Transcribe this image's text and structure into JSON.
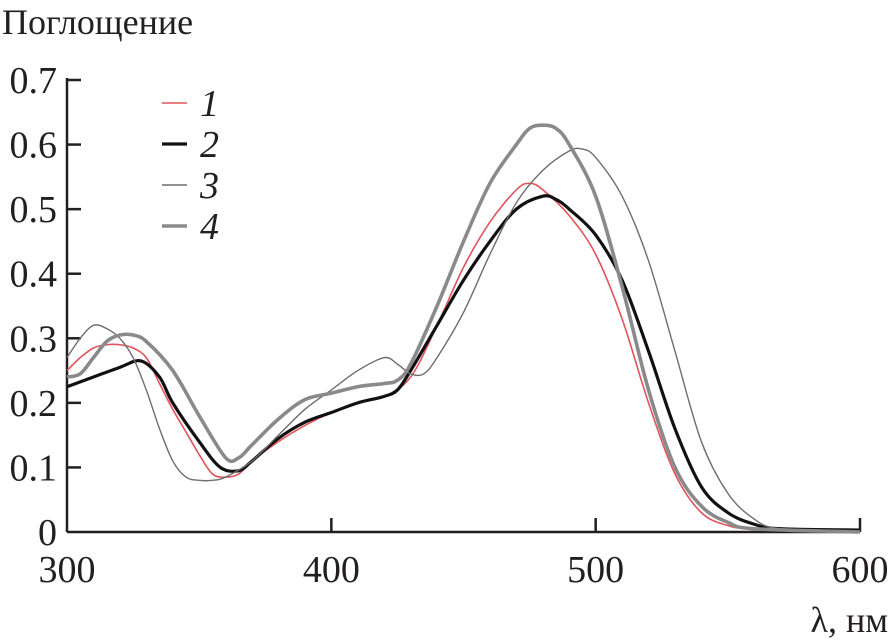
{
  "chart_data": {
    "type": "line",
    "ylabel": "Поглощение",
    "xlabel": "λ, нм",
    "xlim": [
      300,
      600
    ],
    "ylim": [
      0,
      0.7
    ],
    "xticks": [
      "300",
      "400",
      "500",
      "600"
    ],
    "yticks": [
      "0",
      "0.1",
      "0.2",
      "0.3",
      "0.4",
      "0.5",
      "0.6",
      "0.7"
    ],
    "grid": false,
    "legend_position": "top-left",
    "series": [
      {
        "name": "1",
        "color": "#e2535a",
        "width": 1.6,
        "x": [
          300,
          305,
          310,
          315,
          320,
          325,
          330,
          335,
          340,
          345,
          350,
          355,
          360,
          365,
          370,
          380,
          390,
          400,
          410,
          420,
          430,
          440,
          450,
          460,
          470,
          475,
          480,
          490,
          500,
          510,
          520,
          530,
          540,
          550,
          560,
          600
        ],
        "y": [
          0.25,
          0.27,
          0.285,
          0.29,
          0.29,
          0.285,
          0.27,
          0.23,
          0.19,
          0.155,
          0.12,
          0.09,
          0.085,
          0.09,
          0.11,
          0.14,
          0.165,
          0.185,
          0.2,
          0.21,
          0.24,
          0.32,
          0.41,
          0.48,
          0.53,
          0.54,
          0.53,
          0.49,
          0.43,
          0.33,
          0.2,
          0.09,
          0.03,
          0.01,
          0.005,
          0.0
        ]
      },
      {
        "name": "2",
        "color": "#111111",
        "width": 3.2,
        "x": [
          300,
          310,
          320,
          328,
          335,
          340,
          350,
          358,
          365,
          370,
          380,
          390,
          400,
          410,
          420,
          425,
          430,
          440,
          450,
          460,
          470,
          480,
          485,
          490,
          500,
          510,
          520,
          530,
          540,
          550,
          560,
          570,
          600
        ],
        "y": [
          0.225,
          0.24,
          0.255,
          0.265,
          0.24,
          0.2,
          0.14,
          0.1,
          0.095,
          0.11,
          0.145,
          0.17,
          0.185,
          0.2,
          0.21,
          0.22,
          0.25,
          0.32,
          0.39,
          0.45,
          0.5,
          0.52,
          0.515,
          0.5,
          0.46,
          0.39,
          0.28,
          0.16,
          0.07,
          0.03,
          0.012,
          0.005,
          0.003
        ]
      },
      {
        "name": "3",
        "color": "#6d6d6d",
        "width": 1.4,
        "x": [
          300,
          305,
          310,
          315,
          320,
          325,
          330,
          335,
          340,
          345,
          350,
          355,
          360,
          370,
          380,
          390,
          400,
          410,
          420,
          425,
          430,
          435,
          440,
          450,
          460,
          470,
          480,
          490,
          495,
          500,
          510,
          520,
          530,
          540,
          550,
          560,
          570,
          600
        ],
        "y": [
          0.27,
          0.3,
          0.32,
          0.315,
          0.3,
          0.27,
          0.22,
          0.16,
          0.11,
          0.085,
          0.08,
          0.08,
          0.085,
          0.11,
          0.15,
          0.19,
          0.22,
          0.25,
          0.27,
          0.26,
          0.245,
          0.245,
          0.27,
          0.34,
          0.43,
          0.51,
          0.56,
          0.59,
          0.593,
          0.58,
          0.52,
          0.42,
          0.28,
          0.14,
          0.06,
          0.02,
          0.005,
          0.0
        ]
      },
      {
        "name": "4",
        "color": "#8a8a8a",
        "width": 3.6,
        "x": [
          300,
          305,
          310,
          315,
          320,
          325,
          330,
          340,
          350,
          360,
          365,
          370,
          380,
          390,
          400,
          410,
          420,
          425,
          430,
          440,
          450,
          460,
          470,
          475,
          480,
          485,
          490,
          500,
          510,
          520,
          530,
          540,
          550,
          560,
          600
        ],
        "y": [
          0.24,
          0.245,
          0.27,
          0.295,
          0.305,
          0.305,
          0.295,
          0.25,
          0.18,
          0.115,
          0.115,
          0.135,
          0.175,
          0.205,
          0.215,
          0.225,
          0.23,
          0.235,
          0.26,
          0.35,
          0.45,
          0.54,
          0.6,
          0.625,
          0.63,
          0.625,
          0.6,
          0.52,
          0.38,
          0.22,
          0.1,
          0.04,
          0.015,
          0.005,
          0.0
        ]
      }
    ]
  }
}
